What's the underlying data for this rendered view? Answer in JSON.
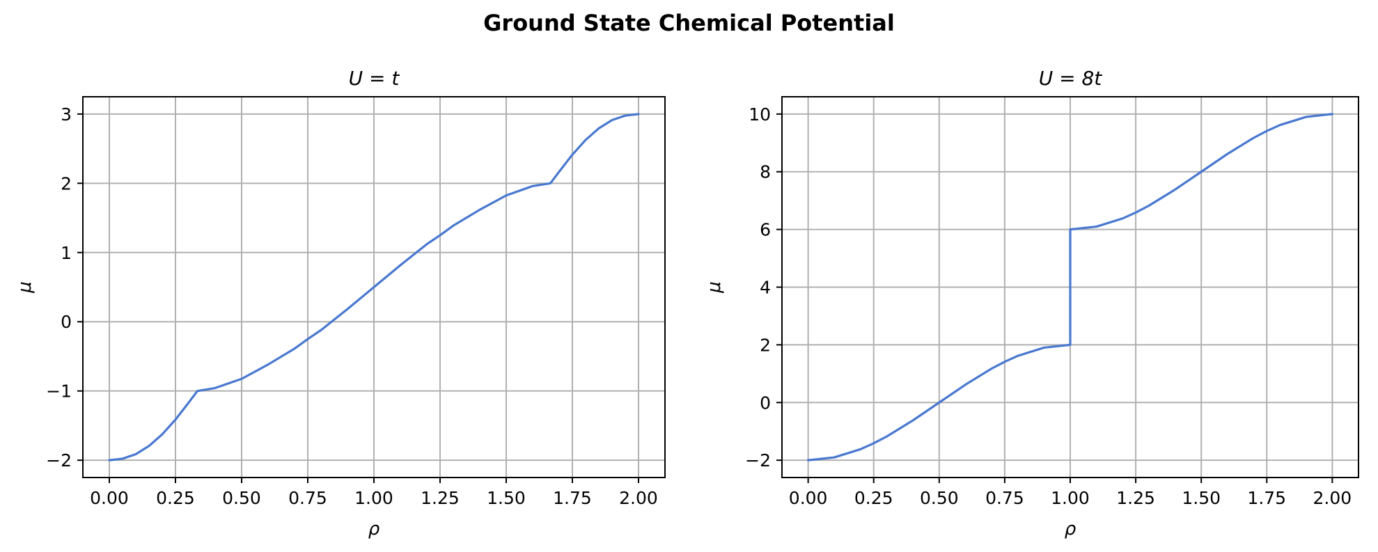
{
  "figure": {
    "suptitle": "Ground State Chemical Potential"
  },
  "style": {
    "line_color": "#4878cf",
    "grid_color": "#b0b0b0",
    "spine_color": "#000000"
  },
  "chart_data": [
    {
      "type": "line",
      "title": "U = t",
      "xlabel": "ρ",
      "ylabel": "μ",
      "xlim": [
        -0.1,
        2.1
      ],
      "ylim": [
        -2.25,
        3.25
      ],
      "xticks": [
        0,
        0.25,
        0.5,
        0.75,
        1.0,
        1.25,
        1.5,
        1.75,
        2.0
      ],
      "xtick_labels": [
        "0.00",
        "0.25",
        "0.50",
        "0.75",
        "1.00",
        "1.25",
        "1.50",
        "1.75",
        "2.00"
      ],
      "yticks": [
        -2,
        -1,
        0,
        1,
        2,
        3
      ],
      "ytick_labels": [
        "−2",
        "−1",
        "0",
        "1",
        "2",
        "3"
      ],
      "grid": true,
      "series": [
        {
          "x": [
            0,
            0.05,
            0.1,
            0.15,
            0.2,
            0.25,
            0.3,
            0.333,
            0.4,
            0.5,
            0.6,
            0.7,
            0.75,
            0.8,
            0.9,
            1.0,
            1.1,
            1.2,
            1.25,
            1.3,
            1.4,
            1.5,
            1.6,
            1.667,
            1.7,
            1.75,
            1.8,
            1.85,
            1.9,
            1.95,
            2.0
          ],
          "y": [
            -2.0,
            -1.978,
            -1.913,
            -1.794,
            -1.626,
            -1.414,
            -1.167,
            -1.0,
            -0.957,
            -0.825,
            -0.618,
            -0.388,
            -0.25,
            -0.121,
            0.183,
            0.5,
            0.817,
            1.121,
            1.25,
            1.388,
            1.618,
            1.825,
            1.96,
            2.0,
            2.167,
            2.414,
            2.626,
            2.794,
            2.913,
            2.978,
            3.0
          ]
        }
      ]
    },
    {
      "type": "line",
      "title": "U = 8t",
      "xlabel": "ρ",
      "ylabel": "μ",
      "xlim": [
        -0.1,
        2.1
      ],
      "ylim": [
        -2.6,
        10.6
      ],
      "xticks": [
        0,
        0.25,
        0.5,
        0.75,
        1.0,
        1.25,
        1.5,
        1.75,
        2.0
      ],
      "xtick_labels": [
        "0.00",
        "0.25",
        "0.50",
        "0.75",
        "1.00",
        "1.25",
        "1.50",
        "1.75",
        "2.00"
      ],
      "yticks": [
        -2,
        0,
        2,
        4,
        6,
        8,
        10
      ],
      "ytick_labels": [
        "−2",
        "0",
        "2",
        "4",
        "6",
        "8",
        "10"
      ],
      "grid": true,
      "series": [
        {
          "x": [
            0,
            0.1,
            0.2,
            0.25,
            0.3,
            0.4,
            0.5,
            0.6,
            0.7,
            0.75,
            0.8,
            0.9,
            1.0,
            1.0,
            1.1,
            1.2,
            1.25,
            1.3,
            1.4,
            1.5,
            1.6,
            1.7,
            1.75,
            1.8,
            1.9,
            2.0
          ],
          "y": [
            -2.0,
            -1.902,
            -1.618,
            -1.414,
            -1.176,
            -0.618,
            0.0,
            0.618,
            1.176,
            1.414,
            1.618,
            1.902,
            2.0,
            6.0,
            6.098,
            6.382,
            6.586,
            6.824,
            7.382,
            8.0,
            8.618,
            9.176,
            9.414,
            9.618,
            9.902,
            10.0
          ]
        }
      ]
    }
  ]
}
